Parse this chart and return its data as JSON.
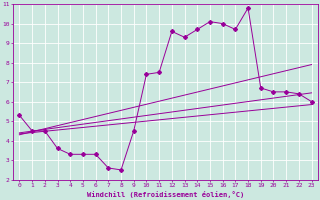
{
  "title": "",
  "xlabel": "Windchill (Refroidissement éolien,°C)",
  "ylabel": "",
  "bg_color": "#cce8e0",
  "line_color": "#990099",
  "grid_color": "#ffffff",
  "xlim": [
    -0.5,
    23.5
  ],
  "ylim": [
    2,
    11
  ],
  "xticks": [
    0,
    1,
    2,
    3,
    4,
    5,
    6,
    7,
    8,
    9,
    10,
    11,
    12,
    13,
    14,
    15,
    16,
    17,
    18,
    19,
    20,
    21,
    22,
    23
  ],
  "yticks": [
    2,
    3,
    4,
    5,
    6,
    7,
    8,
    9,
    10,
    11
  ],
  "line1_x": [
    0,
    1,
    2,
    3,
    4,
    5,
    6,
    7,
    8,
    9,
    10,
    11,
    12,
    13,
    14,
    15,
    16,
    17,
    18,
    19,
    20,
    21,
    22,
    23
  ],
  "line1_y": [
    5.3,
    4.5,
    4.5,
    3.6,
    3.3,
    3.3,
    3.3,
    2.6,
    2.5,
    4.5,
    7.4,
    7.5,
    9.6,
    9.3,
    9.7,
    10.1,
    10.0,
    9.7,
    10.8,
    6.7,
    6.5,
    6.5,
    6.4,
    6.0
  ],
  "line2_x": [
    0,
    23
  ],
  "line2_y": [
    4.3,
    7.9
  ],
  "line3_x": [
    0,
    23
  ],
  "line3_y": [
    4.4,
    6.45
  ],
  "line4_x": [
    0,
    23
  ],
  "line4_y": [
    4.35,
    5.85
  ]
}
